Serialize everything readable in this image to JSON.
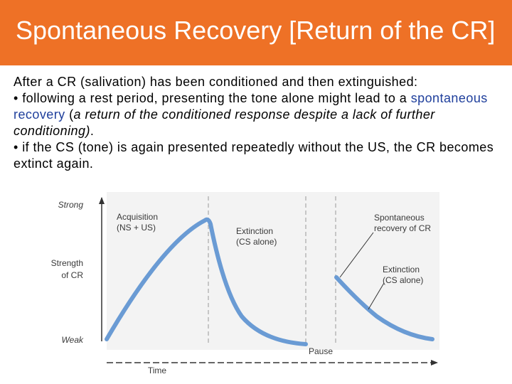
{
  "title": "Spontaneous Recovery [Return of the CR]",
  "intro": "After a CR (salivation) has been conditioned and then extinguished:",
  "bullet1": {
    "prefix": "• following a rest period, presenting the tone alone might lead to a",
    "term": "spontaneous recovery",
    "open_paren": " (",
    "definition": "a return of the conditioned response despite a lack of further conditioning)",
    "end": "."
  },
  "bullet2": "• if the CS (tone) is again presented repeatedly without the US, the CR becomes extinct again.",
  "figure": {
    "y_top_label": "Strong",
    "y_axis_label_line1": "Strength",
    "y_axis_label_line2": "of CR",
    "y_bottom_label": "Weak",
    "x_axis_label": "Time",
    "pause_label": "Pause",
    "acquisition_line1": "Acquisition",
    "acquisition_line2": "(NS + US)",
    "extinction1_line1": "Extinction",
    "extinction1_line2": "(CS alone)",
    "spontaneous_line1": "Spontaneous",
    "spontaneous_line2": "recovery of CR",
    "extinction2_line1": "Extinction",
    "extinction2_line2": "(CS alone)",
    "curve_color": "#6a9bd4",
    "label_color": "#3a3a3a"
  }
}
